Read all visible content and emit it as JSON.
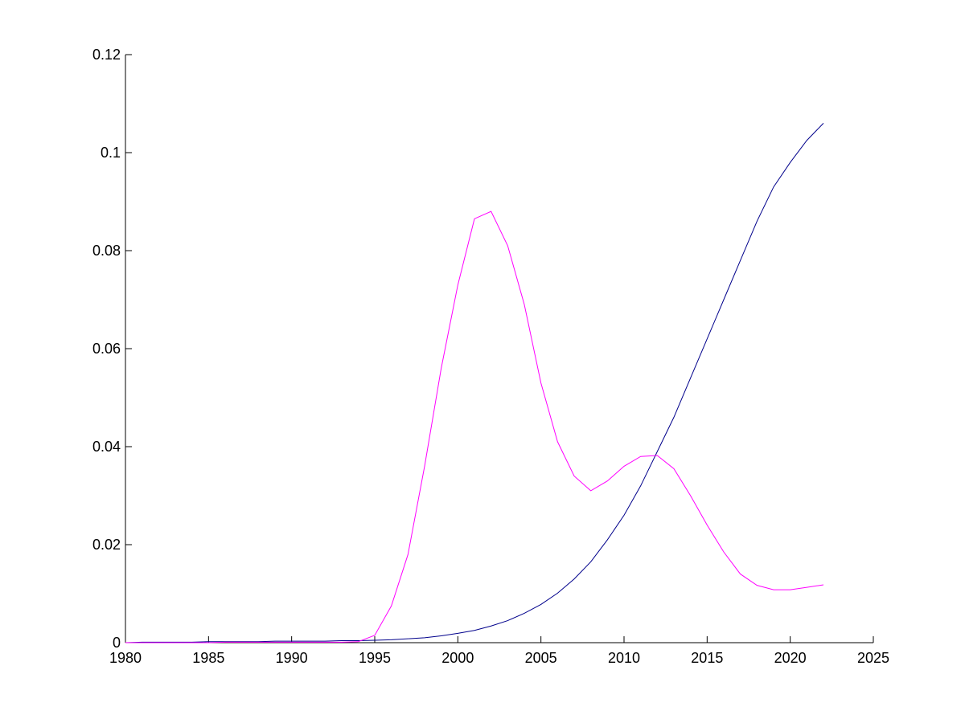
{
  "chart_data": {
    "type": "line",
    "x": [
      1980,
      1981,
      1982,
      1983,
      1984,
      1985,
      1986,
      1987,
      1988,
      1989,
      1990,
      1991,
      1992,
      1993,
      1994,
      1995,
      1996,
      1997,
      1998,
      1999,
      2000,
      2001,
      2002,
      2003,
      2004,
      2005,
      2006,
      2007,
      2008,
      2009,
      2010,
      2011,
      2012,
      2013,
      2014,
      2015,
      2016,
      2017,
      2018,
      2019,
      2020,
      2021,
      2022
    ],
    "series": [
      {
        "color": "#00008b",
        "values": [
          0,
          0.0001,
          0.0001,
          0.0001,
          0.0001,
          0.0002,
          0.0002,
          0.0002,
          0.0002,
          0.0003,
          0.0003,
          0.0003,
          0.0003,
          0.0004,
          0.0004,
          0.0005,
          0.0006,
          0.0008,
          0.001,
          0.0014,
          0.0019,
          0.0025,
          0.0034,
          0.0045,
          0.006,
          0.0078,
          0.0101,
          0.013,
          0.0165,
          0.021,
          0.026,
          0.032,
          0.039,
          0.046,
          0.054,
          0.062,
          0.07,
          0.078,
          0.086,
          0.093,
          0.098,
          0.1025,
          0.106
        ]
      },
      {
        "color": "#ff00ff",
        "values": [
          0,
          0,
          0,
          0,
          0,
          0,
          0.0001,
          0.0001,
          0.0001,
          0.0001,
          0.0001,
          0.0001,
          0.0001,
          0.0001,
          0.0002,
          0.0015,
          0.0075,
          0.018,
          0.036,
          0.056,
          0.073,
          0.0865,
          0.088,
          0.081,
          0.069,
          0.053,
          0.041,
          0.034,
          0.031,
          0.033,
          0.036,
          0.038,
          0.0382,
          0.0355,
          0.03,
          0.024,
          0.0185,
          0.014,
          0.0117,
          0.0108,
          0.0108,
          0.0113,
          0.0118
        ]
      }
    ],
    "xlim": [
      1980,
      2025
    ],
    "xticks": [
      1980,
      1985,
      1990,
      1995,
      2000,
      2005,
      2010,
      2015,
      2020,
      2025
    ],
    "ylim": [
      0,
      0.12
    ],
    "yticks": [
      0,
      0.02,
      0.04,
      0.06,
      0.08,
      0.1,
      0.12
    ],
    "grid": false
  }
}
